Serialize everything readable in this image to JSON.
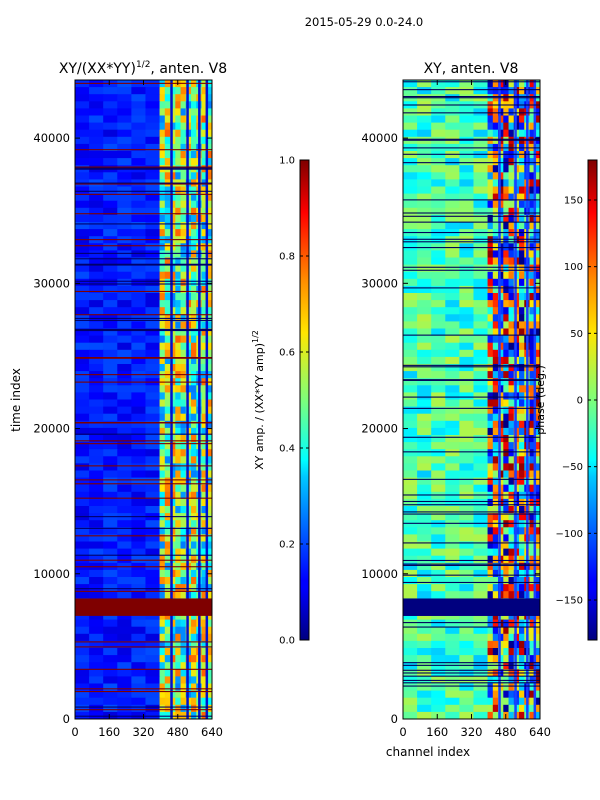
{
  "figure": {
    "suptitle": "2015-05-29 0.0-24.0"
  },
  "chart_data": [
    {
      "type": "heatmap",
      "title": "XY/(XX*YY)",
      "title_sup": "1/2",
      "title_suffix": ", anten. V8",
      "xlabel": "",
      "ylabel": "time index",
      "x_range": [
        0,
        640
      ],
      "y_range": [
        0,
        44000
      ],
      "x_ticks": [
        0,
        160,
        320,
        480,
        640
      ],
      "y_ticks": [
        0,
        10000,
        20000,
        30000,
        40000
      ],
      "colormap": "jet",
      "band_start_channel": 395,
      "saturated_bands": [
        [
          7100,
          8300
        ]
      ],
      "colorbar": {
        "label": "XY amp. / (XX*YY amp)",
        "label_sup": "1/2",
        "range": [
          0.0,
          1.0
        ],
        "ticks": [
          "0.0",
          "0.2",
          "0.4",
          "0.6",
          "0.8",
          "1.0"
        ]
      }
    },
    {
      "type": "heatmap",
      "title": "XY, anten. V8",
      "xlabel": "channel index",
      "ylabel": "",
      "x_range": [
        0,
        640
      ],
      "y_range": [
        0,
        44000
      ],
      "x_ticks": [
        0,
        160,
        320,
        480,
        640
      ],
      "y_ticks": [
        0,
        10000,
        20000,
        30000,
        40000
      ],
      "colormap": "jet",
      "band_start_channel": 395,
      "saturated_bands": [
        [
          7100,
          8300
        ]
      ],
      "colorbar": {
        "label": "phase (deg.)",
        "range": [
          -180,
          180
        ],
        "ticks": [
          "150",
          "100",
          "50",
          "0",
          "−50",
          "−100",
          "−150"
        ],
        "tick_values": [
          150,
          100,
          50,
          0,
          -50,
          -100,
          -150
        ]
      }
    }
  ]
}
